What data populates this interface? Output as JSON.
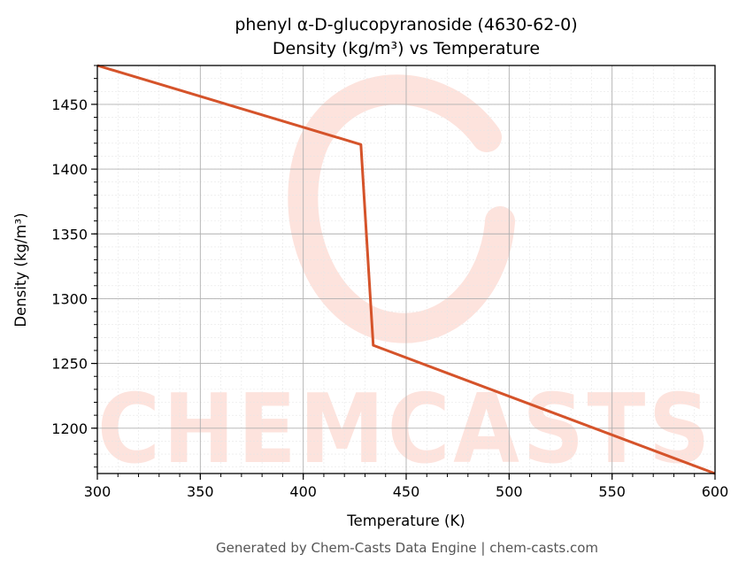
{
  "chart_data": {
    "type": "line",
    "title": "phenyl α-D-glucopyranoside (4630-62-0)",
    "subtitle": "Density (kg/m³) vs Temperature",
    "xlabel": "Temperature (K)",
    "ylabel": "Density (kg/m³)",
    "xlim": [
      300,
      600
    ],
    "ylim": [
      1165,
      1480
    ],
    "x_ticks": [
      300,
      350,
      400,
      450,
      500,
      550,
      600
    ],
    "y_ticks": [
      1200,
      1250,
      1300,
      1350,
      1400,
      1450
    ],
    "grid": true,
    "series": [
      {
        "color": "#d5532a",
        "x": [
          300,
          428,
          434,
          600
        ],
        "y": [
          1480,
          1419,
          1264,
          1165
        ]
      }
    ]
  },
  "watermark": {
    "text": "CHEMCASTS",
    "color": "#fde3dd"
  },
  "footer": "Generated by Chem-Casts Data Engine | chem-casts.com"
}
